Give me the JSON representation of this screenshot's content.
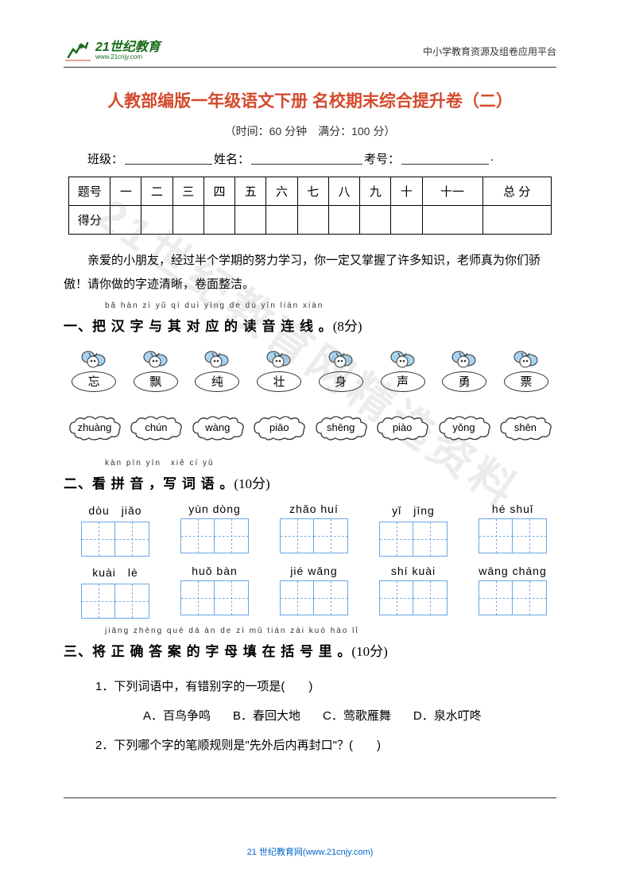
{
  "header": {
    "logo_cn": "21世纪教育",
    "logo_url": "www.21cnjy.com",
    "right_text": "中小学教育资源及组卷应用平台"
  },
  "title": "人教部编版一年级语文下册 名校期末综合提升卷（二）",
  "subtitle": "（时间：60 分钟　满分：100 分）",
  "info": {
    "class_label": "班级：",
    "name_label": "姓名：",
    "id_label": "考号：",
    "dot": "."
  },
  "score_table": {
    "row1": [
      "题号",
      "一",
      "二",
      "三",
      "四",
      "五",
      "六",
      "七",
      "八",
      "九",
      "十",
      "十一",
      "总 分"
    ],
    "row2_label": "得分"
  },
  "intro": "亲爱的小朋友，经过半个学期的努力学习，你一定又掌握了许多知识，老师真为你们骄傲！请你做的字迹清晰，卷面整洁。",
  "watermark": "21世纪教育网精选资料",
  "section1": {
    "pinyin": "bǎ hàn zì yǔ qí duì yìng de dú yīn lián xiàn",
    "title": "一、把 汉 字 与 其 对 应 的 读 音 连 线 。",
    "pts": "(8分)",
    "chars": [
      "忘",
      "飘",
      "纯",
      "壮",
      "身",
      "声",
      "勇",
      "票"
    ],
    "pinyins": [
      "zhuàng",
      "chún",
      "wàng",
      "piāo",
      "shēng",
      "piào",
      "yǒng",
      "shēn"
    ]
  },
  "section2": {
    "pinyin": "kàn pīn yīn　xiě cí yǔ",
    "title": "二、看 拼 音 ，写 词 语 。",
    "pts": "(10分)",
    "row1": [
      {
        "py": "dòu　jiǎo",
        "n": 2
      },
      {
        "py": "yùn  dòng",
        "n": 2
      },
      {
        "py": "zhǎo  huí",
        "n": 2
      },
      {
        "py": "yǐ　jīng",
        "n": 2
      },
      {
        "py": "hé  shuǐ",
        "n": 2
      }
    ],
    "row2": [
      {
        "py": "kuài　lè",
        "n": 2
      },
      {
        "py": "huǒ  bàn",
        "n": 2
      },
      {
        "py": "jié  wǎng",
        "n": 2
      },
      {
        "py": "shí  kuài",
        "n": 2
      },
      {
        "py": "wāng cháng",
        "n": 2
      }
    ]
  },
  "section3": {
    "pinyin": "jiāng zhèng què dá àn de zì mǔ tián zài kuò hào lǐ",
    "title": "三、将 正 确 答 案 的 字 母 填 在 括 号 里 。",
    "pts": "(10分)",
    "q1": "1．下列词语中，有错别字的一项是(　　)",
    "q1_opts": [
      "A．百鸟争鸣",
      "B．春回大地",
      "C．莺歌雁舞",
      "D．泉水叮咚"
    ],
    "q2": "2．下列哪个字的笔顺规则是\"先外后内再封口\"？(　　)"
  },
  "footer": "21 世纪教育网(www.21cnjy.com)",
  "colors": {
    "title": "#d44a2c",
    "logo": "#1a6b1a",
    "grid": "#6aa6e6",
    "bee_body": "#a8d4f0",
    "bee_stroke": "#333"
  }
}
